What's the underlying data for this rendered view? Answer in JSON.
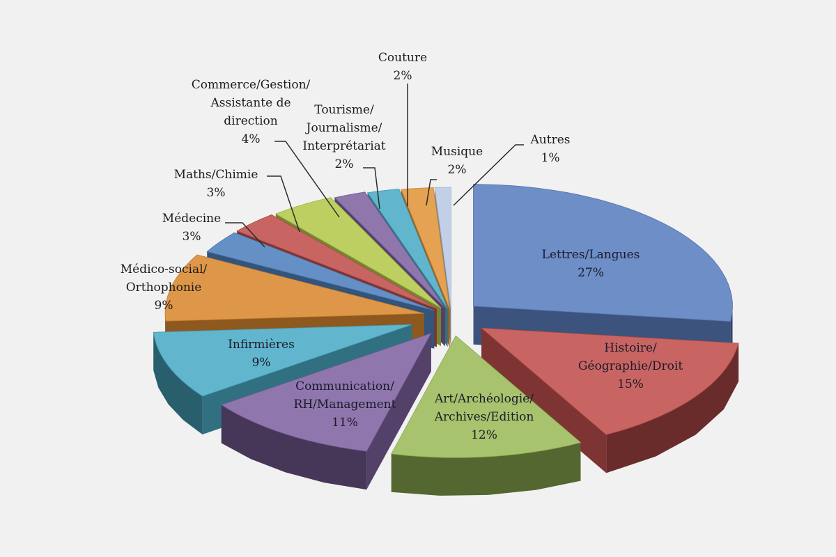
{
  "chart_data": {
    "type": "pie",
    "style": "3d-exploded",
    "title": "",
    "slices": [
      {
        "label": "Lettres/Langues",
        "value": 27,
        "display": "27%",
        "color": "#5a7fc0",
        "label_position": "inside"
      },
      {
        "label": "Histoire/ Géographie/Droit",
        "value": 15,
        "display": "15%",
        "color": "#c0504d",
        "label_position": "inside"
      },
      {
        "label": "Art/Archéologie/ Archives/Edition",
        "value": 12,
        "display": "12%",
        "color": "#9bbb59",
        "label_position": "inside"
      },
      {
        "label": "Communication/ RH/Management",
        "value": 11,
        "display": "11%",
        "color": "#8064a2",
        "label_position": "inside"
      },
      {
        "label": "Infirmières",
        "value": 9,
        "display": "9%",
        "color": "#4bacc6",
        "label_position": "inside"
      },
      {
        "label": "Médico-social/ Orthophonie",
        "value": 9,
        "display": "9%",
        "color": "#d9892f",
        "label_position": "outside"
      },
      {
        "label": "Médecine",
        "value": 3,
        "display": "3%",
        "color": "#4f81bd",
        "label_position": "outside"
      },
      {
        "label": "Maths/Chimie",
        "value": 3,
        "display": "3%",
        "color": "#c0504d",
        "label_position": "outside"
      },
      {
        "label": "Commerce/Gestion/ Assistante de direction",
        "value": 4,
        "display": "4%",
        "color": "#b5c94c",
        "label_position": "outside"
      },
      {
        "label": "Tourisme/ Journalisme/ Interprétariat",
        "value": 2,
        "display": "2%",
        "color": "#8064a2",
        "label_position": "outside"
      },
      {
        "label": "Couture",
        "value": 2,
        "display": "2%",
        "color": "#4bacc6",
        "label_position": "outside"
      },
      {
        "label": "Musique",
        "value": 2,
        "display": "2%",
        "color": "#e0953a",
        "label_position": "outside"
      },
      {
        "label": "Autres",
        "value": 1,
        "display": "1%",
        "color": "#b9c9e4",
        "label_position": "outside"
      }
    ]
  }
}
